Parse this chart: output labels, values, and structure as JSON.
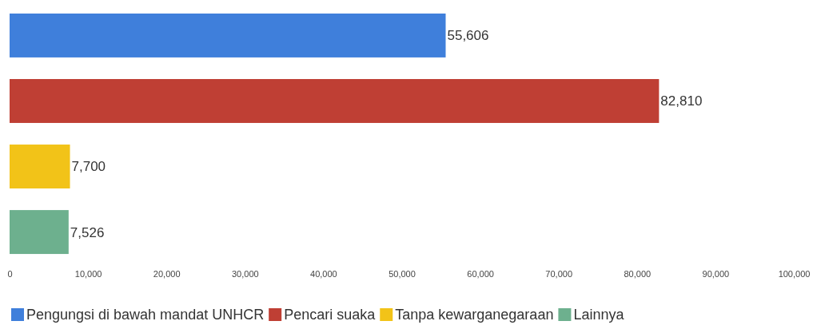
{
  "chart_data": {
    "type": "bar",
    "orientation": "horizontal",
    "stacked": true,
    "categories": [
      null,
      null,
      null,
      null
    ],
    "series": [
      {
        "name": "Pengungsi di bawah mandat UNHCR",
        "color": "#3f7fdb",
        "values": [
          55606,
          null,
          null,
          null
        ],
        "value_labels": [
          "55,606",
          null,
          null,
          null
        ]
      },
      {
        "name": "Pencari suaka",
        "color": "#bf3f34",
        "values": [
          null,
          82810,
          null,
          null
        ],
        "value_labels": [
          null,
          "82,810",
          null,
          null
        ]
      },
      {
        "name": "Tanpa kewarganegaraan",
        "color": "#f2c318",
        "values": [
          null,
          null,
          7700,
          null
        ],
        "value_labels": [
          null,
          null,
          "7,700",
          null
        ]
      },
      {
        "name": "Lainnya",
        "color": "#6db08e",
        "values": [
          null,
          null,
          null,
          7526
        ],
        "value_labels": [
          null,
          null,
          null,
          "7,526"
        ]
      }
    ],
    "xlim": [
      0,
      100000
    ],
    "xticks": [
      0,
      {
        "value": 10000,
        "label": "10,000"
      },
      {
        "value": 20000,
        "label": "20,000"
      },
      {
        "value": 30000,
        "label": "30,000"
      },
      {
        "value": 40000,
        "label": "40,000"
      },
      {
        "value": 50000,
        "label": "50,000"
      },
      {
        "value": 60000,
        "label": "60,000"
      },
      {
        "value": 70000,
        "label": "70,000"
      },
      {
        "value": 80000,
        "label": "80,000"
      },
      {
        "value": 90000,
        "label": "90,000"
      },
      {
        "value": 100000,
        "label": "100,000"
      }
    ],
    "legend": "bottom"
  }
}
